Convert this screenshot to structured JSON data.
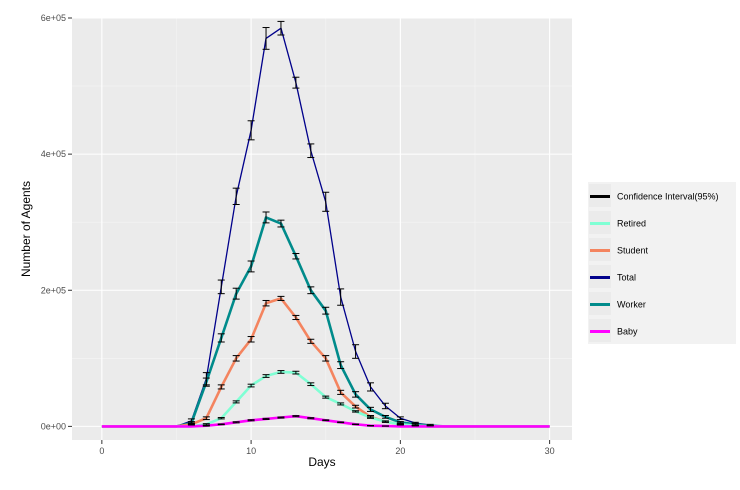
{
  "chart_data": {
    "type": "line",
    "xlabel": "Days",
    "ylabel": "Number of Agents",
    "xlim": [
      -2,
      31.5
    ],
    "ylim": [
      -20000,
      600000
    ],
    "x_ticks": [
      0,
      10,
      20,
      30
    ],
    "x_tick_labels": [
      "0",
      "10",
      "20",
      "30"
    ],
    "y_ticks": [
      0,
      200000,
      400000,
      600000
    ],
    "y_tick_labels": [
      "0e+00",
      "2e+05",
      "4e+05",
      "6e+05"
    ],
    "grid": true,
    "background": "#ebebeb",
    "legend_position": "right",
    "legend": [
      {
        "label": "Confidence Interval(95%)",
        "color": "#000000"
      },
      {
        "label": "Retired",
        "color": "#7fffd4"
      },
      {
        "label": "Student",
        "color": "#f4845f"
      },
      {
        "label": "Total",
        "color": "#00008b"
      },
      {
        "label": "Worker",
        "color": "#008b8b"
      },
      {
        "label": "Baby",
        "color": "#ff00ff"
      }
    ],
    "x": [
      0,
      1,
      2,
      3,
      4,
      5,
      6,
      7,
      8,
      9,
      10,
      11,
      12,
      13,
      14,
      15,
      16,
      17,
      18,
      19,
      20,
      21,
      22,
      23,
      24,
      25,
      26,
      27,
      28,
      29,
      30
    ],
    "series": [
      {
        "name": "Total",
        "color": "#00008b",
        "width": 1.3,
        "values": [
          0,
          0,
          0,
          0,
          0,
          0,
          8000,
          70000,
          205000,
          338000,
          435000,
          570000,
          585000,
          505000,
          405000,
          330000,
          190000,
          110000,
          58000,
          30000,
          12000,
          5000,
          2000,
          0,
          0,
          0,
          0,
          0,
          0,
          0,
          0
        ],
        "ci": [
          0,
          0,
          0,
          0,
          0,
          0,
          3000,
          9000,
          10000,
          12000,
          14000,
          16000,
          10000,
          8000,
          10000,
          14000,
          12000,
          10000,
          6000,
          4000,
          2000,
          1000,
          1000,
          0,
          0,
          0,
          0,
          0,
          0,
          0,
          0
        ]
      },
      {
        "name": "Worker",
        "color": "#008b8b",
        "width": 2.6,
        "values": [
          0,
          0,
          0,
          0,
          0,
          0,
          5000,
          65000,
          130000,
          195000,
          235000,
          307000,
          298000,
          250000,
          200000,
          170000,
          90000,
          47000,
          25000,
          14000,
          6000,
          3000,
          1000,
          0,
          0,
          0,
          0,
          0,
          0,
          0,
          0
        ],
        "ci": [
          0,
          0,
          0,
          0,
          0,
          0,
          2000,
          6000,
          6000,
          8000,
          8000,
          8000,
          5000,
          4000,
          5000,
          5000,
          5000,
          4000,
          3000,
          2000,
          1000,
          1000,
          0,
          0,
          0,
          0,
          0,
          0,
          0,
          0,
          0
        ]
      },
      {
        "name": "Student",
        "color": "#f4845f",
        "width": 2.6,
        "values": [
          0,
          0,
          0,
          0,
          0,
          0,
          3000,
          12000,
          58000,
          100000,
          128000,
          181000,
          188000,
          160000,
          125000,
          100000,
          50000,
          29000,
          14000,
          7000,
          3000,
          1000,
          0,
          0,
          0,
          0,
          0,
          0,
          0,
          0,
          0
        ],
        "ci": [
          0,
          0,
          0,
          0,
          0,
          0,
          1000,
          2000,
          3000,
          4000,
          4000,
          4000,
          3000,
          3000,
          3000,
          4000,
          3000,
          2000,
          2000,
          1000,
          1000,
          0,
          0,
          0,
          0,
          0,
          0,
          0,
          0,
          0,
          0
        ]
      },
      {
        "name": "Retired",
        "color": "#7fffd4",
        "width": 2.6,
        "values": [
          0,
          0,
          0,
          0,
          0,
          0,
          0,
          3000,
          12000,
          36000,
          60000,
          74000,
          80000,
          79000,
          62000,
          43000,
          33000,
          22000,
          13000,
          7000,
          3000,
          1000,
          0,
          0,
          0,
          0,
          0,
          0,
          0,
          0,
          0
        ],
        "ci": [
          0,
          0,
          0,
          0,
          0,
          0,
          0,
          1000,
          1000,
          1500,
          2000,
          2000,
          2000,
          2000,
          2000,
          1500,
          1500,
          1000,
          1000,
          1000,
          0,
          0,
          0,
          0,
          0,
          0,
          0,
          0,
          0,
          0,
          0
        ]
      },
      {
        "name": "Baby",
        "color": "#ff00ff",
        "width": 2.6,
        "values": [
          0,
          0,
          0,
          0,
          0,
          0,
          0,
          1000,
          3000,
          6000,
          9000,
          11000,
          13000,
          15000,
          12000,
          9000,
          6000,
          3000,
          1000,
          500,
          0,
          0,
          0,
          0,
          0,
          0,
          0,
          0,
          0,
          0,
          0
        ],
        "ci": [
          0,
          0,
          0,
          0,
          0,
          0,
          0,
          500,
          500,
          800,
          800,
          800,
          800,
          800,
          800,
          600,
          500,
          400,
          300,
          200,
          0,
          0,
          0,
          0,
          0,
          0,
          0,
          0,
          0,
          0,
          0
        ]
      }
    ]
  }
}
